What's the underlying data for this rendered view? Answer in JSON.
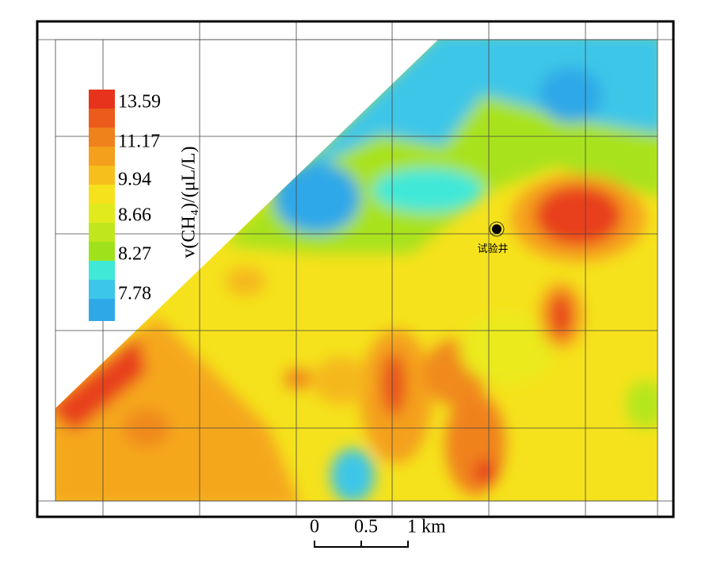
{
  "legend": {
    "title": "v(CH₄)/(μL/L)",
    "labels": [
      "13.59",
      "11.17",
      "9.94",
      "8.66",
      "8.27",
      "7.78"
    ]
  },
  "well": {
    "label": "试验井"
  },
  "scale_bar": {
    "labels": [
      "0",
      "0.5",
      "1 km"
    ]
  }
}
